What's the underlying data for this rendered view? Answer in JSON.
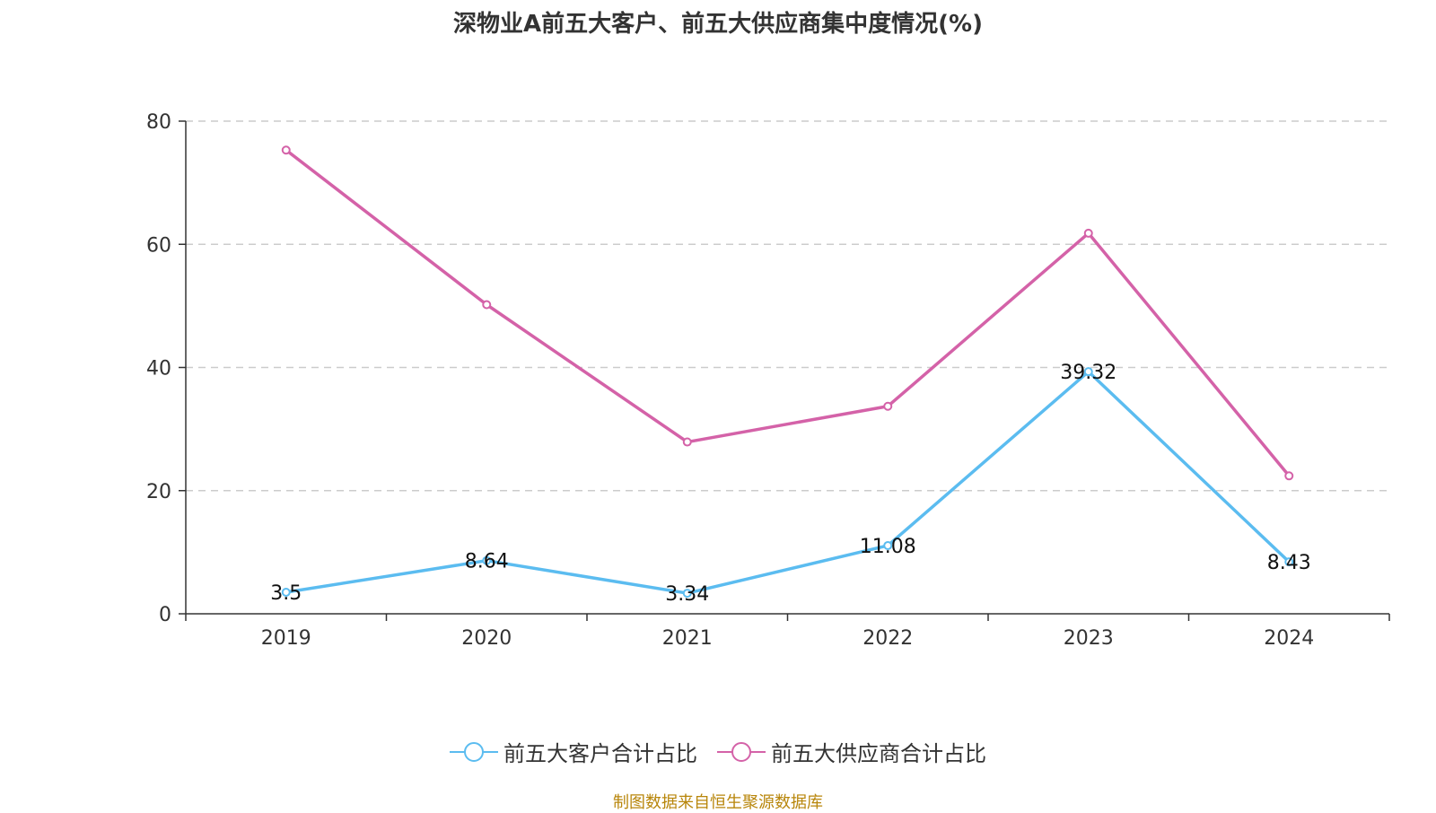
{
  "title": "深物业A前五大客户、前五大供应商集中度情况(%)",
  "source": "制图数据来自恒生聚源数据库",
  "chart_data": {
    "type": "line",
    "categories": [
      "2019",
      "2020",
      "2021",
      "2022",
      "2023",
      "2024"
    ],
    "ylim": [
      0,
      80
    ],
    "yticks": [
      0,
      20,
      40,
      60,
      80
    ],
    "grid": true,
    "legend_position": "bottom",
    "series": [
      {
        "name": "前五大客户合计占比",
        "color": "#5bbcf0",
        "values": [
          3.5,
          8.64,
          3.34,
          11.08,
          39.32,
          8.43
        ],
        "labels": [
          "3.5",
          "8.64",
          "3.34",
          "11.08",
          "39.32",
          "8.43"
        ]
      },
      {
        "name": "前五大供应商合计占比",
        "color": "#d462a8",
        "values": [
          75.3,
          50.2,
          27.9,
          33.7,
          61.8,
          22.4
        ]
      }
    ]
  }
}
